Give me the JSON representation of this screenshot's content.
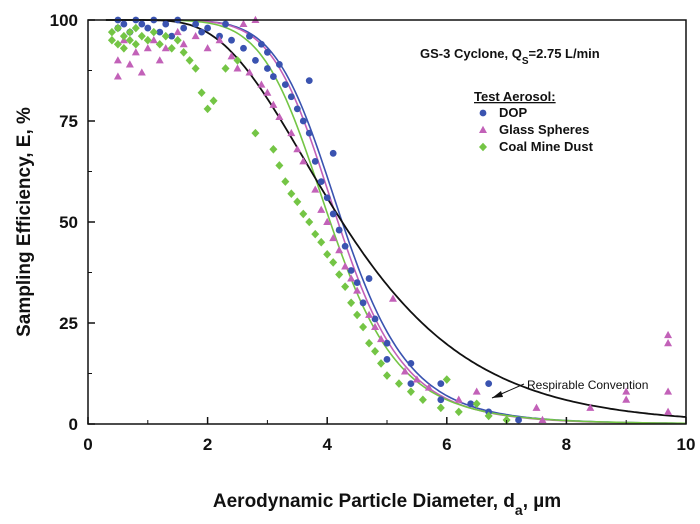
{
  "chart_data": {
    "type": "scatter",
    "title": "",
    "annotation": {
      "text": "GS-3 Cyclone, Q",
      "sub": "S",
      "tail": "=2.75 L/min"
    },
    "xlabel": {
      "main": "Aerodynamic Particle Diameter, d",
      "sub": "a",
      "tail": ", µm"
    },
    "ylabel": "Sampling Efficiency, E, %",
    "xlim": [
      0,
      10
    ],
    "ylim": [
      0,
      100
    ],
    "xticks": [
      0,
      2,
      4,
      6,
      8,
      10
    ],
    "yticks": [
      0,
      25,
      50,
      75,
      100
    ],
    "grid": false,
    "legend": {
      "title": "Test Aerosol:",
      "placement": "top-right",
      "entries": [
        {
          "label": "DOP",
          "marker": "circle",
          "color": "#3a53b0"
        },
        {
          "label": "Glass Spheres",
          "marker": "triangle",
          "color": "#c261b8"
        },
        {
          "label": "Coal Mine Dust",
          "marker": "diamond",
          "color": "#74c545"
        }
      ]
    },
    "curve_label": "Respirable Convention",
    "series": [
      {
        "name": "DOP",
        "marker": "circle",
        "color": "#3a53b0",
        "points": [
          [
            0.5,
            100
          ],
          [
            0.5,
            98
          ],
          [
            0.6,
            99
          ],
          [
            0.7,
            97
          ],
          [
            0.8,
            100
          ],
          [
            0.9,
            99
          ],
          [
            1.0,
            98
          ],
          [
            1.1,
            100
          ],
          [
            1.2,
            97
          ],
          [
            1.3,
            99
          ],
          [
            1.4,
            96
          ],
          [
            1.5,
            100
          ],
          [
            1.6,
            98
          ],
          [
            1.8,
            99
          ],
          [
            1.9,
            97
          ],
          [
            2.0,
            98
          ],
          [
            2.2,
            96
          ],
          [
            2.3,
            99
          ],
          [
            2.4,
            95
          ],
          [
            2.6,
            93
          ],
          [
            2.7,
            96
          ],
          [
            2.8,
            90
          ],
          [
            2.9,
            94
          ],
          [
            3.0,
            88
          ],
          [
            3.0,
            92
          ],
          [
            3.1,
            86
          ],
          [
            3.2,
            89
          ],
          [
            3.3,
            84
          ],
          [
            3.4,
            81
          ],
          [
            3.5,
            78
          ],
          [
            3.6,
            75
          ],
          [
            3.7,
            85
          ],
          [
            3.7,
            72
          ],
          [
            3.8,
            65
          ],
          [
            3.9,
            60
          ],
          [
            4.0,
            56
          ],
          [
            4.1,
            67
          ],
          [
            4.1,
            52
          ],
          [
            4.2,
            48
          ],
          [
            4.3,
            44
          ],
          [
            4.4,
            38
          ],
          [
            4.5,
            35
          ],
          [
            4.6,
            30
          ],
          [
            4.7,
            36
          ],
          [
            4.8,
            26
          ],
          [
            5.0,
            20
          ],
          [
            5.0,
            16
          ],
          [
            5.4,
            15
          ],
          [
            5.4,
            10
          ],
          [
            5.9,
            10
          ],
          [
            5.9,
            6
          ],
          [
            6.4,
            5
          ],
          [
            6.7,
            10
          ],
          [
            6.7,
            3
          ],
          [
            7.2,
            1
          ]
        ]
      },
      {
        "name": "Glass Spheres",
        "marker": "triangle",
        "color": "#c261b8",
        "points": [
          [
            0.5,
            90
          ],
          [
            0.5,
            86
          ],
          [
            0.6,
            95
          ],
          [
            0.7,
            89
          ],
          [
            0.8,
            92
          ],
          [
            0.9,
            87
          ],
          [
            1.0,
            93
          ],
          [
            1.1,
            95
          ],
          [
            1.2,
            90
          ],
          [
            1.3,
            93
          ],
          [
            1.5,
            97
          ],
          [
            1.6,
            94
          ],
          [
            1.8,
            96
          ],
          [
            2.0,
            93
          ],
          [
            2.2,
            95
          ],
          [
            2.4,
            91
          ],
          [
            2.5,
            88
          ],
          [
            2.6,
            99
          ],
          [
            2.7,
            87
          ],
          [
            2.8,
            100
          ],
          [
            2.9,
            84
          ],
          [
            3.0,
            82
          ],
          [
            3.1,
            79
          ],
          [
            3.2,
            76
          ],
          [
            3.4,
            72
          ],
          [
            3.5,
            68
          ],
          [
            3.6,
            65
          ],
          [
            3.8,
            58
          ],
          [
            3.9,
            53
          ],
          [
            4.0,
            50
          ],
          [
            4.1,
            46
          ],
          [
            4.2,
            43
          ],
          [
            4.3,
            39
          ],
          [
            4.4,
            36
          ],
          [
            4.5,
            33
          ],
          [
            4.7,
            27
          ],
          [
            4.8,
            24
          ],
          [
            4.9,
            21
          ],
          [
            5.1,
            31
          ],
          [
            5.3,
            13
          ],
          [
            5.5,
            11
          ],
          [
            5.7,
            9
          ],
          [
            6.2,
            6
          ],
          [
            6.5,
            8
          ],
          [
            7.5,
            4
          ],
          [
            7.6,
            1
          ],
          [
            8.4,
            4
          ],
          [
            9.0,
            8
          ],
          [
            9.0,
            6
          ],
          [
            9.7,
            22
          ],
          [
            9.7,
            20
          ],
          [
            9.7,
            8
          ],
          [
            9.7,
            3
          ]
        ]
      },
      {
        "name": "Coal Mine Dust",
        "marker": "diamond",
        "color": "#74c545",
        "points": [
          [
            0.4,
            97
          ],
          [
            0.4,
            95
          ],
          [
            0.5,
            98
          ],
          [
            0.5,
            94
          ],
          [
            0.6,
            96
          ],
          [
            0.6,
            93
          ],
          [
            0.7,
            97
          ],
          [
            0.7,
            95
          ],
          [
            0.8,
            94
          ],
          [
            0.8,
            98
          ],
          [
            0.9,
            96
          ],
          [
            1.0,
            95
          ],
          [
            1.1,
            97
          ],
          [
            1.2,
            94
          ],
          [
            1.3,
            96
          ],
          [
            1.4,
            93
          ],
          [
            1.5,
            95
          ],
          [
            1.6,
            92
          ],
          [
            1.7,
            90
          ],
          [
            1.8,
            88
          ],
          [
            1.9,
            82
          ],
          [
            2.0,
            78
          ],
          [
            2.1,
            80
          ],
          [
            2.3,
            88
          ],
          [
            2.5,
            90
          ],
          [
            2.8,
            72
          ],
          [
            3.1,
            68
          ],
          [
            3.2,
            64
          ],
          [
            3.3,
            60
          ],
          [
            3.4,
            57
          ],
          [
            3.5,
            55
          ],
          [
            3.6,
            52
          ],
          [
            3.7,
            50
          ],
          [
            3.8,
            47
          ],
          [
            3.9,
            45
          ],
          [
            4.0,
            42
          ],
          [
            4.1,
            40
          ],
          [
            4.2,
            37
          ],
          [
            4.3,
            34
          ],
          [
            4.4,
            30
          ],
          [
            4.5,
            27
          ],
          [
            4.6,
            24
          ],
          [
            4.7,
            20
          ],
          [
            4.8,
            18
          ],
          [
            4.9,
            15
          ],
          [
            5.0,
            12
          ],
          [
            5.2,
            10
          ],
          [
            5.4,
            8
          ],
          [
            5.6,
            6
          ],
          [
            5.9,
            4
          ],
          [
            6.0,
            11
          ],
          [
            6.2,
            3
          ],
          [
            6.5,
            5
          ],
          [
            6.7,
            2
          ],
          [
            7.0,
            1
          ]
        ]
      }
    ],
    "fitted_curves": [
      {
        "name": "DOP",
        "color": "#3a53b0",
        "d50": 4.25,
        "slope": 7.5
      },
      {
        "name": "Glass Spheres",
        "color": "#c261b8",
        "d50": 4.18,
        "slope": 7.5
      },
      {
        "name": "Coal Mine Dust",
        "color": "#74c545",
        "d50": 4.05,
        "slope": 7.0
      }
    ],
    "convention_curve": {
      "color": "#111111",
      "d50": 4.25,
      "gsd": 1.5
    }
  }
}
